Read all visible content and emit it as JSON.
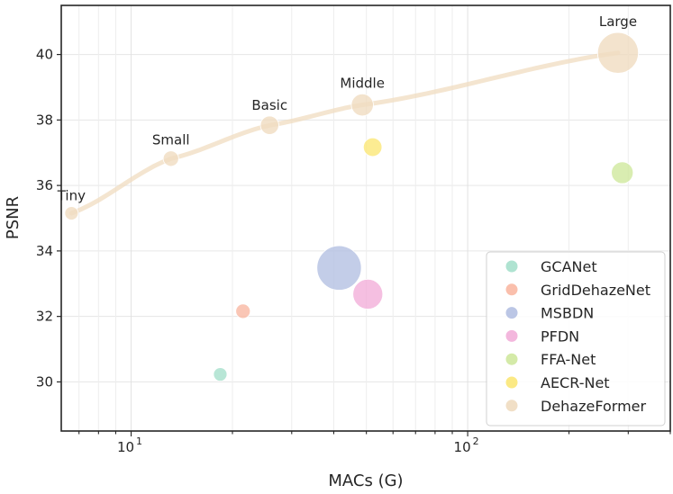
{
  "chart_data": {
    "type": "scatter",
    "xlabel": "MACs (G)",
    "ylabel": "PSNR",
    "xscale": "log",
    "xlim": [
      6.2,
      400
    ],
    "ylim": [
      28.5,
      41.5
    ],
    "grid": true,
    "legend_position": "bottom-right",
    "y_ticks": [
      30,
      32,
      34,
      36,
      38,
      40
    ],
    "x_major_ticks": [
      10,
      100
    ],
    "x_major_tick_labels": [
      {
        "base": "10",
        "exp": "1"
      },
      {
        "base": "10",
        "exp": "2"
      }
    ],
    "series": [
      {
        "name": "GCANet",
        "color": "#a6e0cc",
        "points": [
          {
            "x": 18.4,
            "y": 30.23,
            "size": 0.7
          }
        ]
      },
      {
        "name": "GridDehazeNet",
        "color": "#f9b8a3",
        "points": [
          {
            "x": 21.5,
            "y": 32.16,
            "size": 0.96
          }
        ]
      },
      {
        "name": "MSBDN",
        "color": "#b4c0e2",
        "points": [
          {
            "x": 41.5,
            "y": 33.48,
            "size": 31.35
          }
        ]
      },
      {
        "name": "PFDN",
        "color": "#f2afd9",
        "points": [
          {
            "x": 50.5,
            "y": 32.68,
            "size": 11.27
          }
        ]
      },
      {
        "name": "FFA-Net",
        "color": "#cfe89e",
        "points": [
          {
            "x": 288,
            "y": 36.39,
            "size": 4.46
          }
        ]
      },
      {
        "name": "AECR-Net",
        "color": "#fbe777",
        "points": [
          {
            "x": 52.2,
            "y": 37.17,
            "size": 2.61
          }
        ]
      },
      {
        "name": "DehazeFormer",
        "color": "#f0dcc0",
        "points": [
          {
            "x": 6.65,
            "y": 35.15,
            "size": 0.69,
            "label": "Tiny"
          },
          {
            "x": 13.13,
            "y": 36.82,
            "size": 1.28,
            "label": "Small"
          },
          {
            "x": 25.79,
            "y": 37.84,
            "size": 2.51,
            "label": "Basic"
          },
          {
            "x": 48.64,
            "y": 38.46,
            "size": 4.63,
            "label": "Middle"
          },
          {
            "x": 279.7,
            "y": 40.05,
            "size": 25.44,
            "label": "Large"
          }
        ]
      }
    ]
  }
}
